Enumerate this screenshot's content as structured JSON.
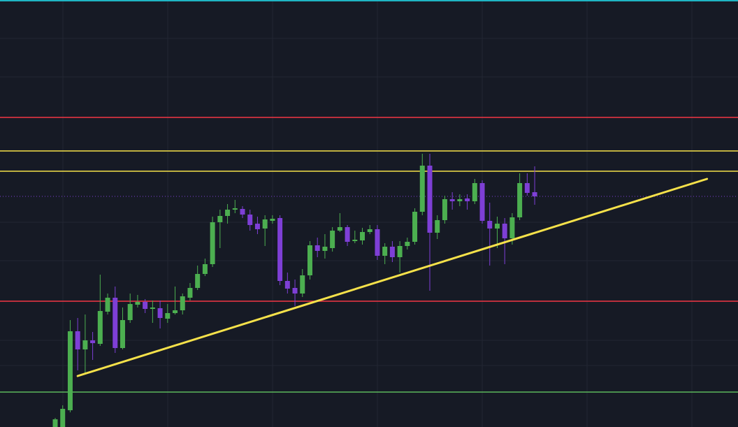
{
  "chart_data": {
    "type": "candlestick",
    "ylim": [
      0,
      611
    ],
    "up_color": "#4caf50",
    "down_color": "#7e3fd6",
    "open": [
      0,
      0,
      24,
      137,
      111,
      124,
      119,
      165,
      185,
      113,
      153,
      175,
      179,
      169,
      170,
      155,
      163,
      167,
      185,
      199,
      219,
      233,
      293,
      302,
      311,
      312,
      304,
      291,
      284,
      295,
      299,
      209,
      199,
      191,
      217,
      260,
      252,
      256,
      281,
      286,
      266,
      267,
      279,
      283,
      245,
      258,
      243,
      259,
      265,
      308,
      374,
      278,
      296,
      326,
      323,
      327,
      323,
      349,
      295,
      284,
      291,
      270,
      300,
      349,
      336
    ],
    "high": [
      13,
      31,
      153,
      156,
      161,
      136,
      218,
      191,
      201,
      171,
      191,
      189,
      183,
      181,
      181,
      176,
      201,
      191,
      206,
      231,
      241,
      301,
      311,
      319,
      325,
      316,
      311,
      301,
      303,
      303,
      303,
      221,
      211,
      226,
      266,
      271,
      276,
      286,
      306,
      289,
      281,
      285,
      289,
      289,
      263,
      266,
      266,
      271,
      313,
      391,
      391,
      303,
      331,
      336,
      333,
      333,
      355,
      353,
      321,
      301,
      299,
      306,
      363,
      363,
      373
    ],
    "low": [
      0,
      0,
      21,
      81,
      76,
      96,
      116,
      161,
      106,
      111,
      149,
      171,
      163,
      149,
      141,
      149,
      161,
      161,
      181,
      196,
      216,
      229,
      256,
      291,
      306,
      299,
      281,
      276,
      259,
      291,
      203,
      191,
      173,
      186,
      211,
      243,
      241,
      251,
      279,
      259,
      263,
      261,
      276,
      239,
      233,
      236,
      221,
      254,
      261,
      303,
      195,
      269,
      291,
      311,
      316,
      311,
      319,
      291,
      231,
      256,
      233,
      261,
      296,
      331,
      318
    ],
    "close": [
      11,
      26,
      137,
      111,
      124,
      120,
      166,
      185,
      113,
      153,
      176,
      179,
      169,
      171,
      156,
      163,
      167,
      187,
      199,
      219,
      233,
      293,
      302,
      311,
      313,
      304,
      289,
      283,
      297,
      298,
      209,
      198,
      191,
      217,
      260,
      252,
      258,
      281,
      286,
      265,
      268,
      279,
      283,
      245,
      258,
      243,
      259,
      265,
      308,
      374,
      278,
      296,
      326,
      323,
      326,
      323,
      349,
      295,
      284,
      291,
      270,
      300,
      349,
      335,
      330
    ],
    "levels": [
      {
        "value": 443,
        "color": "#f23645"
      },
      {
        "value": 395,
        "color": "#f5e14a"
      },
      {
        "value": 366,
        "color": "#f5e14a"
      },
      {
        "value": 180,
        "color": "#f23645"
      },
      {
        "value": 50,
        "color": "#5cb85c"
      }
    ],
    "trendline": {
      "x": [
        3,
        87
      ],
      "values": [
        73,
        355
      ],
      "color": "#f5e14a"
    },
    "last_price_color": "#7e3fd6"
  }
}
